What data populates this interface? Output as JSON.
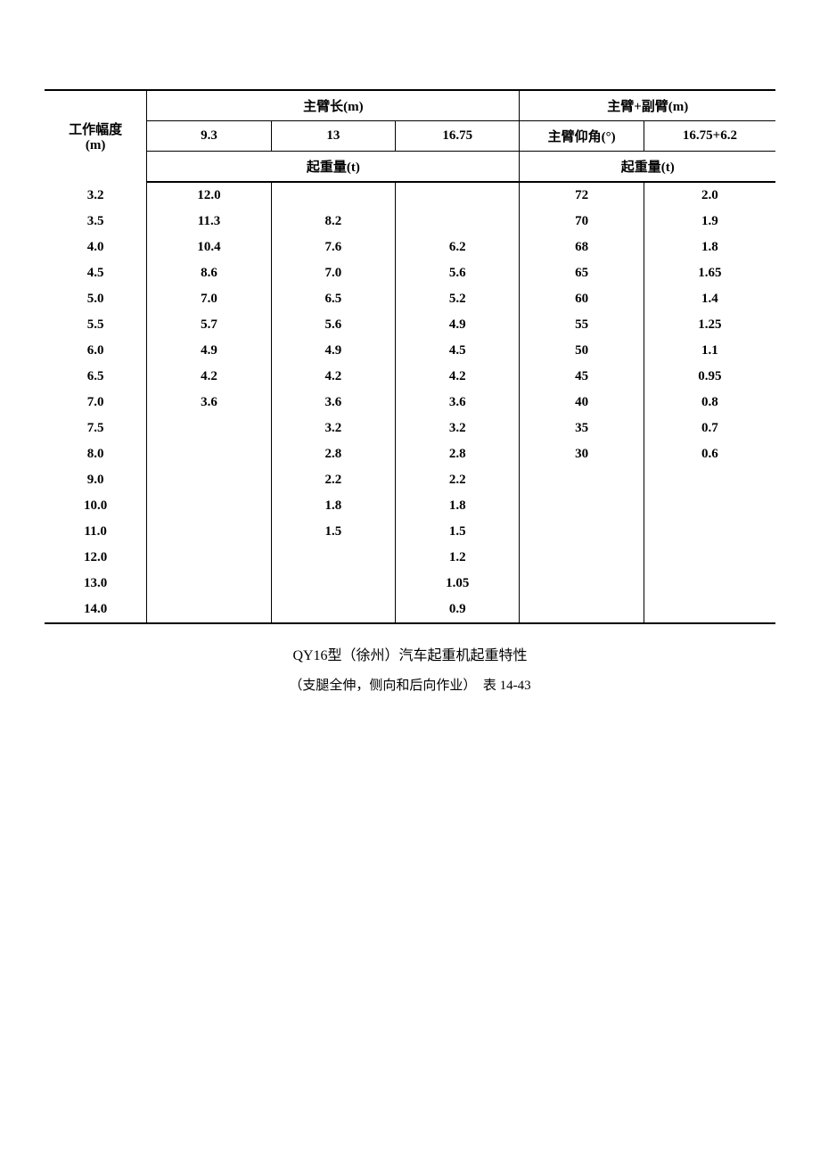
{
  "header": {
    "col1": "工作幅度",
    "col1_unit": "(m)",
    "main_boom": "主臂长(m)",
    "main_aux": "主臂+副臂(m)",
    "sub_9_3": "9.3",
    "sub_13": "13",
    "sub_16_75": "16.75",
    "elevation": "主臂仰角(°)",
    "sub_combo": "16.75+6.2",
    "capacity_left": "起重量(t)",
    "capacity_right": "起重量(t)"
  },
  "rows": [
    {
      "r": "3.2",
      "c1": "12.0",
      "c2": "",
      "c3": "",
      "c4": "72",
      "c5": "2.0"
    },
    {
      "r": "3.5",
      "c1": "11.3",
      "c2": "8.2",
      "c3": "",
      "c4": "70",
      "c5": "1.9"
    },
    {
      "r": "4.0",
      "c1": "10.4",
      "c2": "7.6",
      "c3": "6.2",
      "c4": "68",
      "c5": "1.8"
    },
    {
      "r": "4.5",
      "c1": "8.6",
      "c2": "7.0",
      "c3": "5.6",
      "c4": "65",
      "c5": "1.65"
    },
    {
      "r": "5.0",
      "c1": "7.0",
      "c2": "6.5",
      "c3": "5.2",
      "c4": "60",
      "c5": "1.4"
    },
    {
      "r": "5.5",
      "c1": "5.7",
      "c2": "5.6",
      "c3": "4.9",
      "c4": "55",
      "c5": "1.25"
    },
    {
      "r": "6.0",
      "c1": "4.9",
      "c2": "4.9",
      "c3": "4.5",
      "c4": "50",
      "c5": "1.1"
    },
    {
      "r": "6.5",
      "c1": "4.2",
      "c2": "4.2",
      "c3": "4.2",
      "c4": "45",
      "c5": "0.95"
    },
    {
      "r": "7.0",
      "c1": "3.6",
      "c2": "3.6",
      "c3": "3.6",
      "c4": "40",
      "c5": "0.8"
    },
    {
      "r": "7.5",
      "c1": "",
      "c2": "3.2",
      "c3": "3.2",
      "c4": "35",
      "c5": "0.7"
    },
    {
      "r": "8.0",
      "c1": "",
      "c2": "2.8",
      "c3": "2.8",
      "c4": "30",
      "c5": "0.6"
    },
    {
      "r": "9.0",
      "c1": "",
      "c2": "2.2",
      "c3": "2.2",
      "c4": "",
      "c5": ""
    },
    {
      "r": "10.0",
      "c1": "",
      "c2": "1.8",
      "c3": "1.8",
      "c4": "",
      "c5": ""
    },
    {
      "r": "11.0",
      "c1": "",
      "c2": "1.5",
      "c3": "1.5",
      "c4": "",
      "c5": ""
    },
    {
      "r": "12.0",
      "c1": "",
      "c2": "",
      "c3": "1.2",
      "c4": "",
      "c5": ""
    },
    {
      "r": "13.0",
      "c1": "",
      "c2": "",
      "c3": "1.05",
      "c4": "",
      "c5": ""
    },
    {
      "r": "14.0",
      "c1": "",
      "c2": "",
      "c3": "0.9",
      "c4": "",
      "c5": ""
    }
  ],
  "caption": {
    "title": "QY16型（徐州）汽车起重机起重特性",
    "subtitle": "（支腿全伸，侧向和后向作业）　表 14-43"
  },
  "styling": {
    "background_color": "#ffffff",
    "text_color": "#000000",
    "thick_border_width": 2,
    "thin_border_width": 1,
    "header_font_weight": "bold",
    "body_font_size": 15,
    "caption_font_size": 16,
    "col_widths_percent": [
      14,
      17,
      17,
      17,
      17,
      18
    ]
  }
}
